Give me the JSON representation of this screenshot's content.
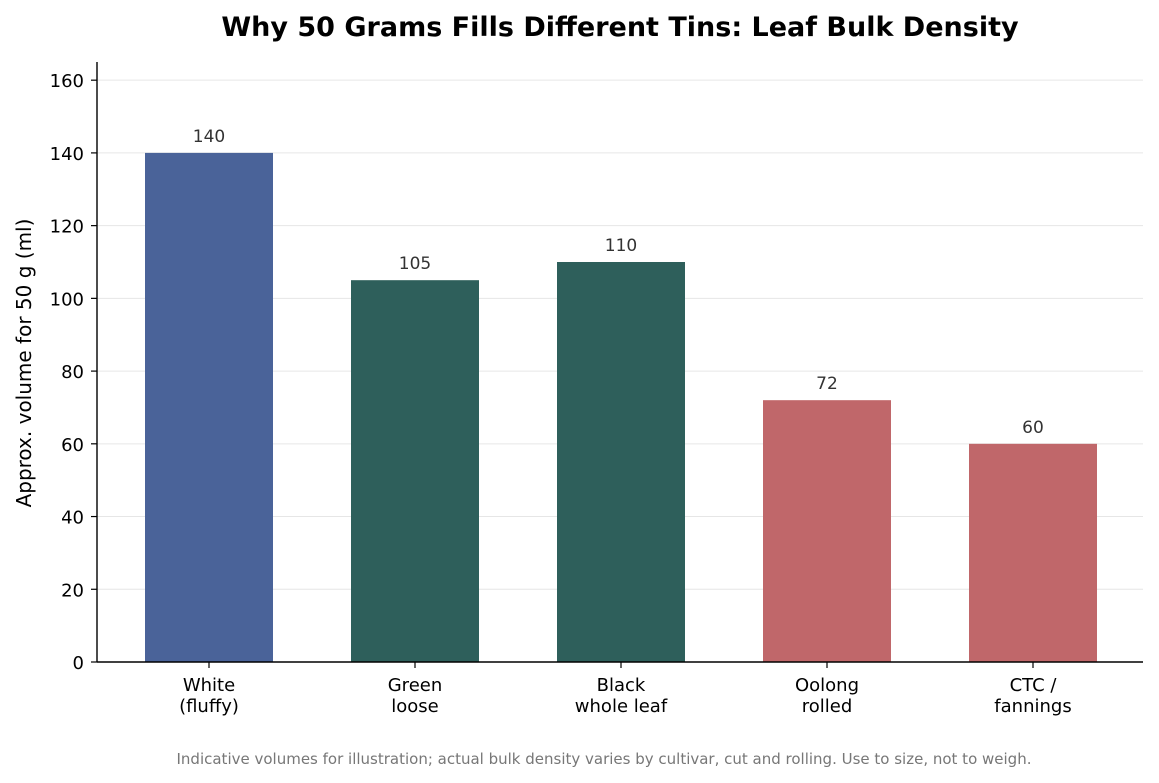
{
  "chart_data": {
    "type": "bar",
    "title": "Why 50 Grams Fills Different Tins: Leaf Bulk Density",
    "xlabel": "",
    "ylabel": "Approx. volume for 50 g (ml)",
    "categories": [
      [
        "White",
        "(fluffy)"
      ],
      [
        "Green",
        "loose"
      ],
      [
        "Black",
        "whole leaf"
      ],
      [
        "Oolong",
        "rolled"
      ],
      [
        "CTC /",
        "fannings"
      ]
    ],
    "values": [
      140,
      105,
      110,
      72,
      60
    ],
    "value_labels": [
      "140",
      "105",
      "110",
      "72",
      "60"
    ],
    "colors": [
      "#4a6399",
      "#2e5f5b",
      "#2e5f5b",
      "#c0676a",
      "#c0676a"
    ],
    "ylim": [
      0,
      165
    ],
    "yticks": [
      0,
      20,
      40,
      60,
      80,
      100,
      120,
      140,
      160
    ],
    "grid": "horizontal",
    "legend": "none",
    "caption": "Indicative volumes for illustration; actual bulk density varies by cultivar, cut and rolling. Use to size, not to weigh."
  }
}
